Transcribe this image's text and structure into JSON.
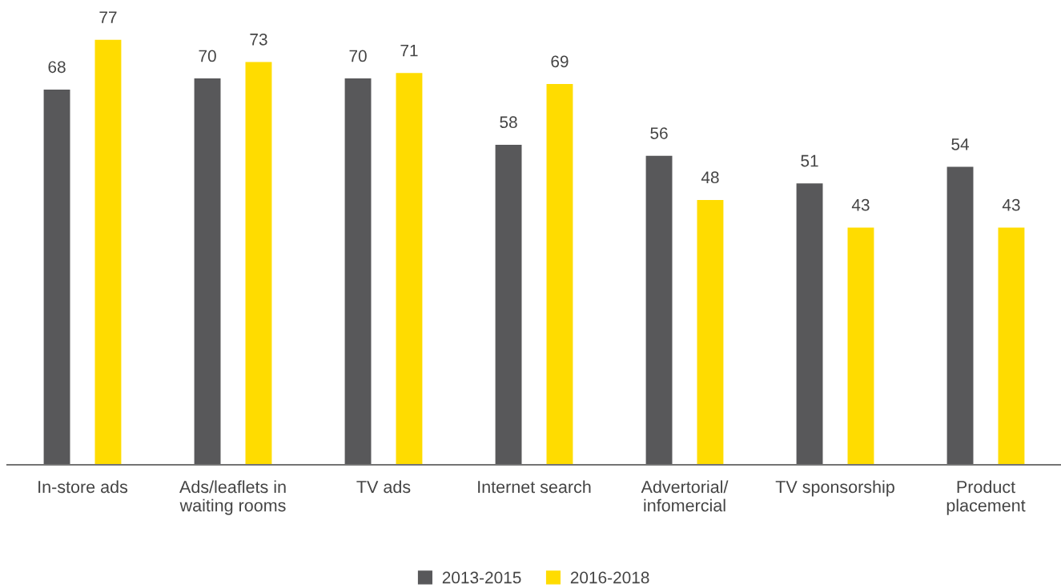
{
  "chart_data": {
    "type": "bar",
    "categories": [
      "In-store ads",
      "Ads/leaflets in\nwaiting rooms",
      "TV ads",
      "Internet search",
      "Advertorial/\ninfomercial",
      "TV sponsorship",
      "Product\nplacement"
    ],
    "series": [
      {
        "name": "2013-2015",
        "color": "#58585a",
        "values": [
          68,
          70,
          70,
          58,
          56,
          51,
          54
        ]
      },
      {
        "name": "2016-2018",
        "color": "#ffdc00",
        "values": [
          77,
          73,
          71,
          69,
          48,
          43,
          43
        ]
      }
    ],
    "data_labels": true,
    "legend": "bottom",
    "grid": false
  }
}
